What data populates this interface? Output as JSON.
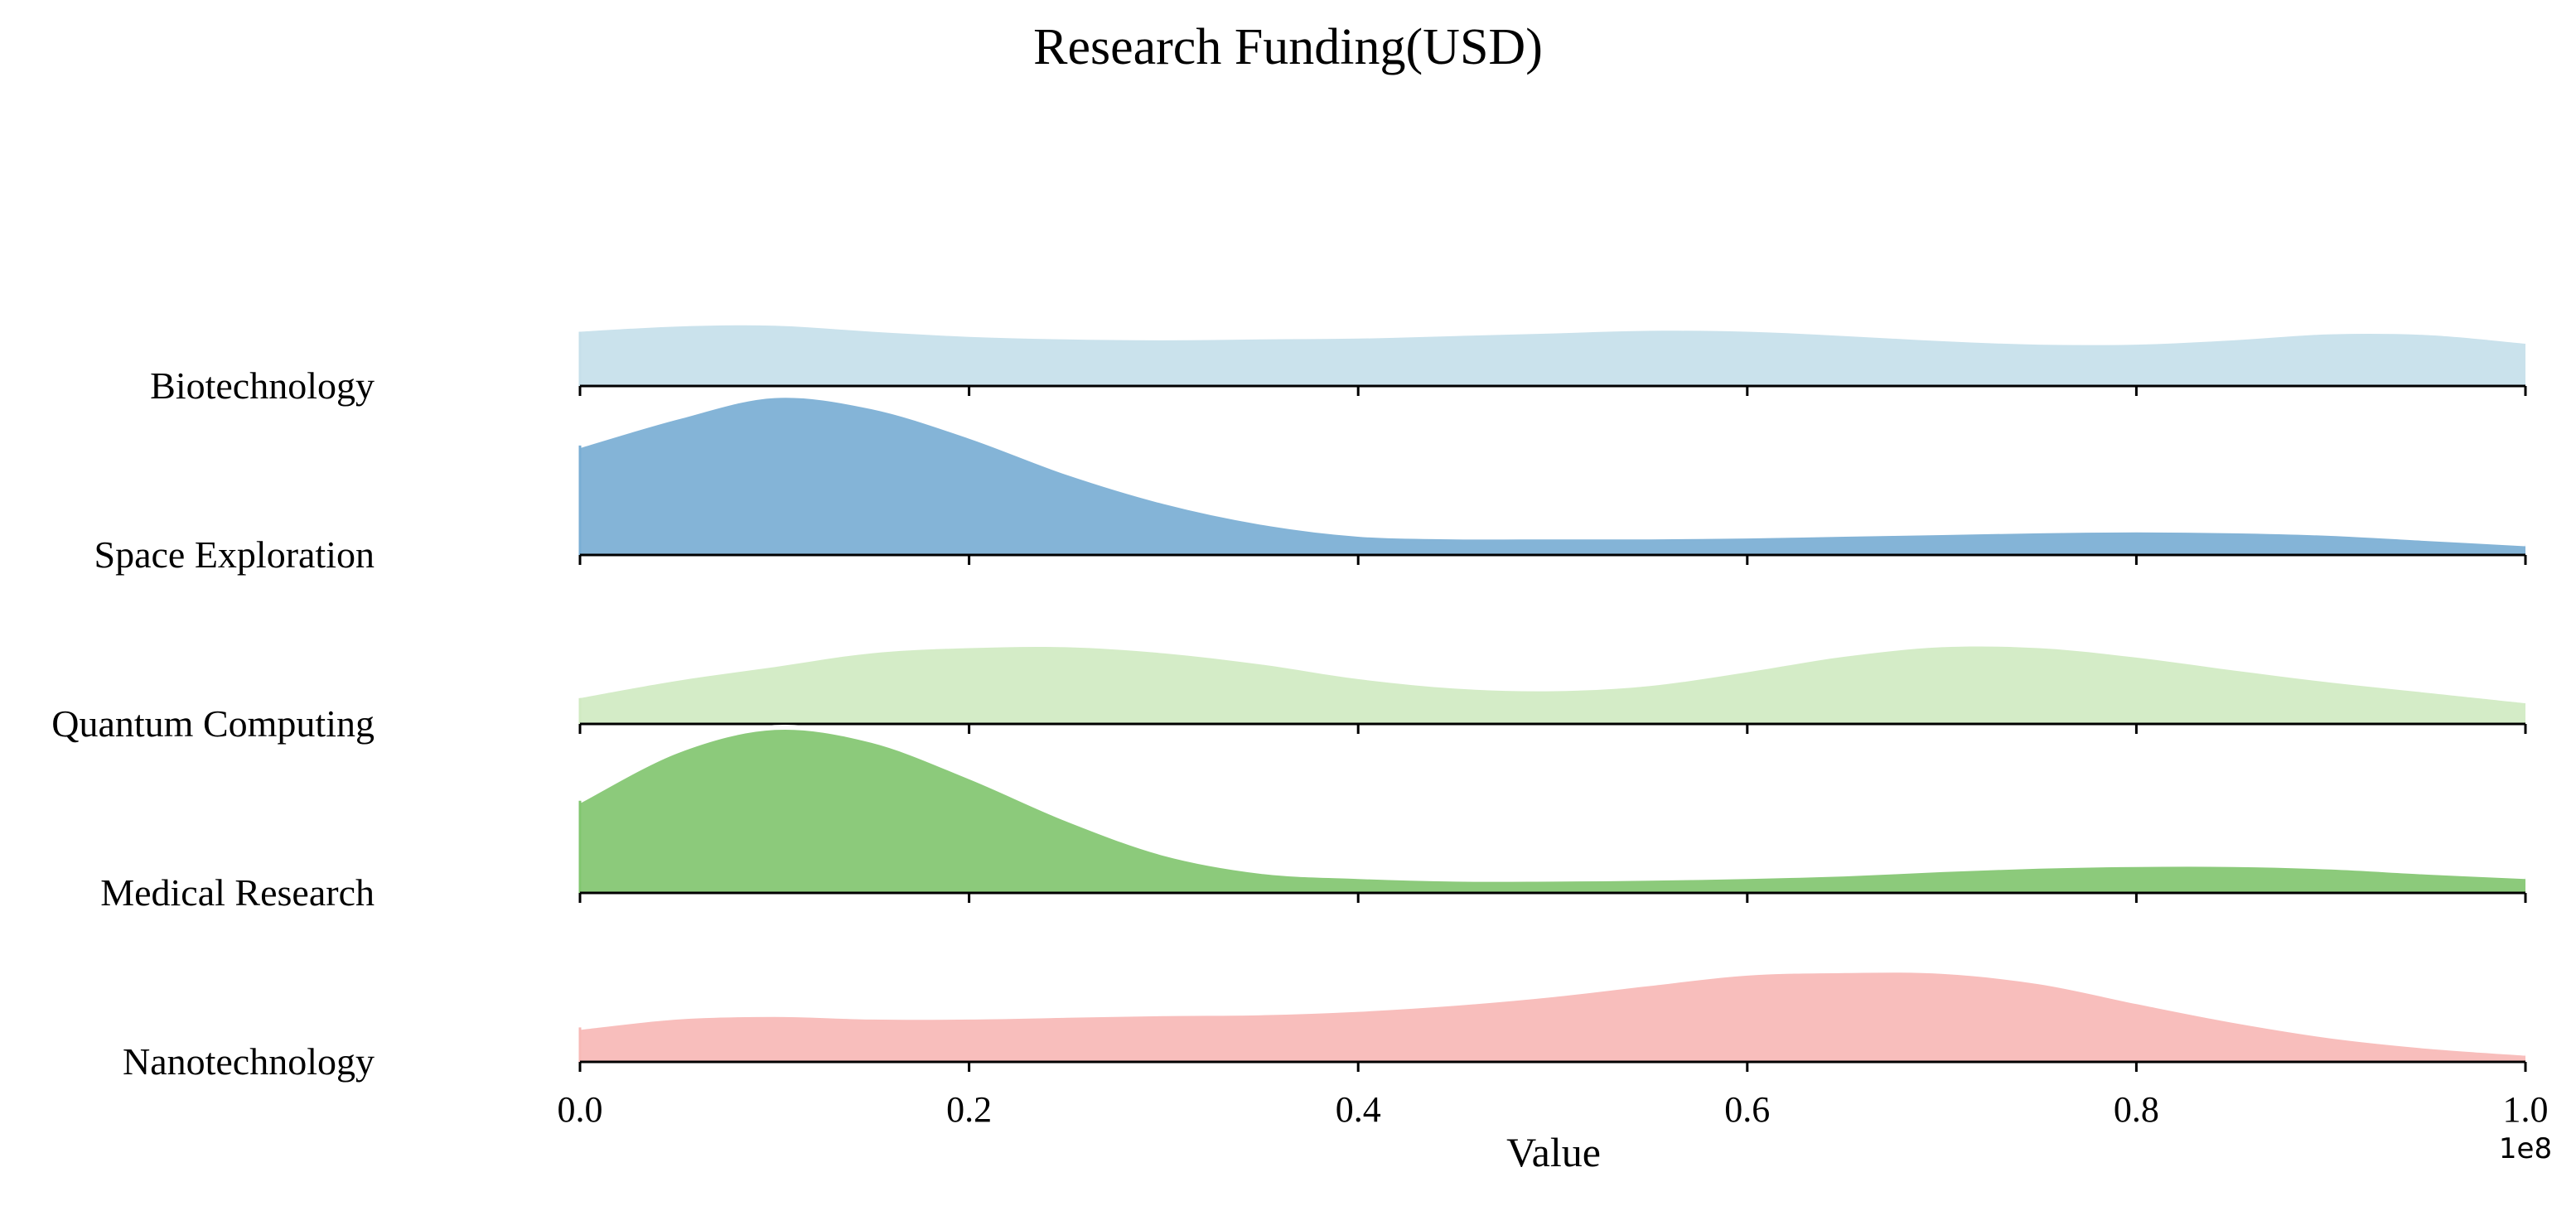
{
  "chart_data": {
    "type": "area",
    "title": "Research Funding(USD)",
    "xlabel": "Value",
    "ylabel": "",
    "xlim": [
      0,
      100000000
    ],
    "x_tick_labels": [
      "0.0",
      "0.2",
      "0.4",
      "0.6",
      "0.8",
      "1.0"
    ],
    "x_ticks": [
      0,
      0.2,
      0.4,
      0.6,
      0.8,
      1.0
    ],
    "x_multiplier": "1e8",
    "grid": false,
    "x_grid": [
      0,
      0.05,
      0.1,
      0.15,
      0.2,
      0.25,
      0.3,
      0.35,
      0.4,
      0.45,
      0.5,
      0.55,
      0.6,
      0.65,
      0.7,
      0.75,
      0.8,
      0.85,
      0.9,
      0.95,
      1.0
    ],
    "series": [
      {
        "name": "Biotechnology",
        "color": "#c6dfea",
        "y": [
          0.63,
          0.69,
          0.7,
          0.63,
          0.57,
          0.54,
          0.53,
          0.54,
          0.55,
          0.58,
          0.61,
          0.64,
          0.63,
          0.58,
          0.52,
          0.48,
          0.48,
          0.53,
          0.6,
          0.59,
          0.49
        ]
      },
      {
        "name": "Space Exploration",
        "color": "#7aaed4",
        "y": [
          1.27,
          1.6,
          1.85,
          1.72,
          1.38,
          0.96,
          0.62,
          0.38,
          0.24,
          0.21,
          0.21,
          0.21,
          0.22,
          0.24,
          0.26,
          0.28,
          0.29,
          0.28,
          0.25,
          0.19,
          0.13
        ]
      },
      {
        "name": "Quantum Computing",
        "color": "#d0eac2",
        "y": [
          0.3,
          0.5,
          0.66,
          0.82,
          0.88,
          0.89,
          0.82,
          0.69,
          0.52,
          0.41,
          0.38,
          0.44,
          0.6,
          0.78,
          0.89,
          0.88,
          0.77,
          0.62,
          0.48,
          0.36,
          0.24
        ]
      },
      {
        "name": "Medical Research",
        "color": "#82c670",
        "y": [
          1.07,
          1.65,
          1.92,
          1.77,
          1.35,
          0.86,
          0.46,
          0.25,
          0.19,
          0.16,
          0.16,
          0.17,
          0.19,
          0.22,
          0.27,
          0.31,
          0.33,
          0.33,
          0.3,
          0.24,
          0.19
        ]
      },
      {
        "name": "Nanotechnology",
        "color": "#f7b9b6",
        "y": [
          0.4,
          0.52,
          0.55,
          0.52,
          0.52,
          0.54,
          0.56,
          0.57,
          0.61,
          0.68,
          0.78,
          0.91,
          1.03,
          1.06,
          1.05,
          0.93,
          0.7,
          0.48,
          0.3,
          0.18,
          0.1
        ]
      }
    ]
  }
}
